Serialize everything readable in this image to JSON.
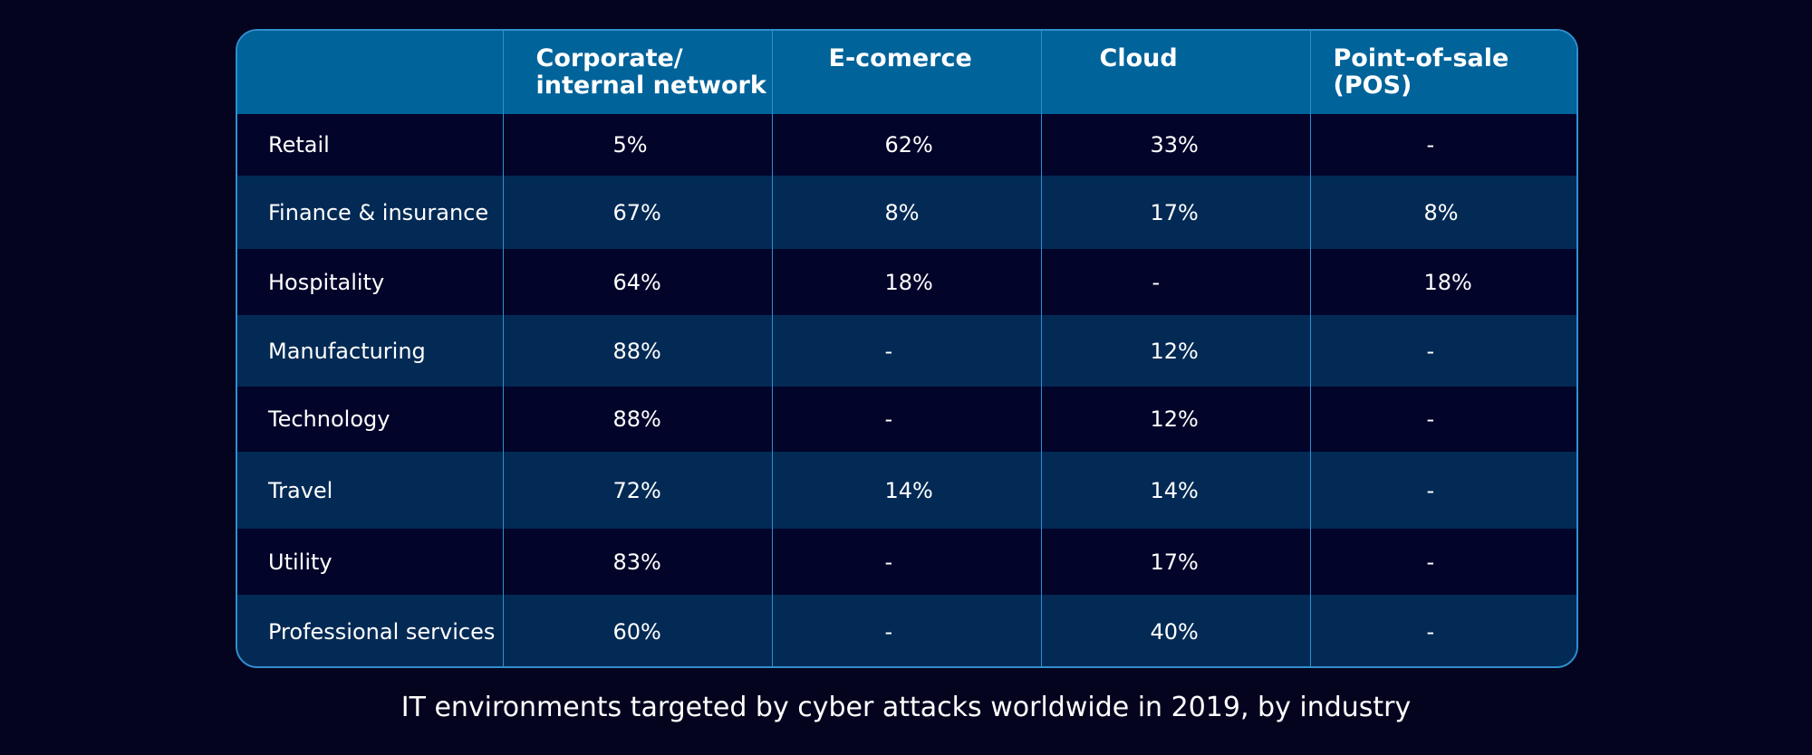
{
  "chart_data": {
    "type": "table",
    "title": "IT environments targeted by cyber attacks worldwide in 2019, by industry",
    "columns": [
      "",
      "Corporate/\ninternal network",
      "E-comerce",
      "Cloud",
      "Point-of-sale\n(POS)"
    ],
    "column_lines": [
      [],
      [
        "Corporate/",
        "internal network"
      ],
      [
        "E-comerce"
      ],
      [
        "Cloud"
      ],
      [
        "Point-of-sale",
        "(POS)"
      ]
    ],
    "rows": [
      {
        "industry": "Retail",
        "values": [
          "5%",
          "62%",
          "33%",
          "-"
        ]
      },
      {
        "industry": "Finance & insurance",
        "values": [
          "67%",
          "8%",
          "17%",
          "8%"
        ]
      },
      {
        "industry": "Hospitality",
        "values": [
          "64%",
          "18%",
          "-",
          "18%"
        ]
      },
      {
        "industry": "Manufacturing",
        "values": [
          "88%",
          "-",
          "12%",
          "-"
        ]
      },
      {
        "industry": "Technology",
        "values": [
          "88%",
          "-",
          "12%",
          "-"
        ]
      },
      {
        "industry": "Travel",
        "values": [
          "72%",
          "14%",
          "14%",
          "-"
        ]
      },
      {
        "industry": "Utility",
        "values": [
          "83%",
          "-",
          "17%",
          "-"
        ]
      },
      {
        "industry": "Professional services",
        "values": [
          "60%",
          "-",
          "40%",
          "-"
        ]
      }
    ]
  },
  "colors": {
    "background": "#04041f",
    "header": "#00639a",
    "row_dark": "#02042a",
    "row_light": "#032a55",
    "border": "#2f8fd0"
  }
}
